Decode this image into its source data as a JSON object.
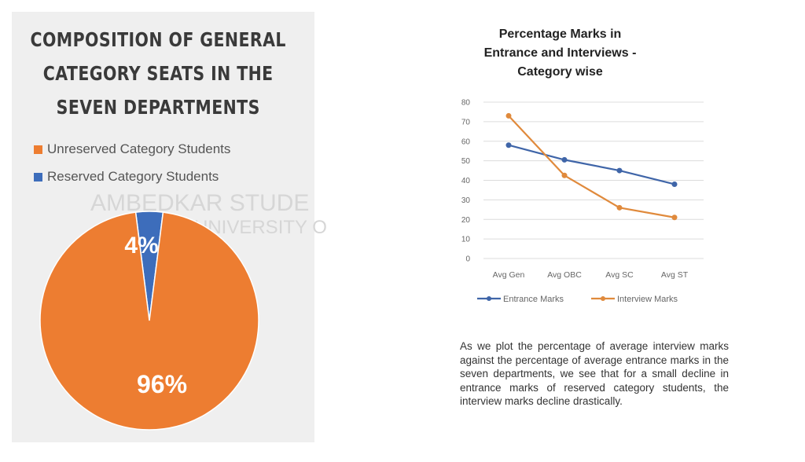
{
  "chart_data": [
    {
      "type": "pie",
      "title": "COMPOSITION OF GENERAL CATEGORY SEATS  IN THE SEVEN DEPARTMENTS",
      "legend": "top",
      "slices": [
        {
          "name": "Unreserved Category Students",
          "value": 96,
          "label": "96%",
          "color": "#ed7d31"
        },
        {
          "name": "Reserved Category Students",
          "value": 4,
          "label": "4%",
          "color": "#3d6dbb"
        }
      ]
    },
    {
      "type": "line",
      "title": "Percentage Marks in Entrance and Interviews - Category wise",
      "categories": [
        "Avg Gen",
        "Avg OBC",
        "Avg SC",
        "Avg ST"
      ],
      "ylim": [
        0,
        80
      ],
      "yticks": [
        "0",
        "10",
        "20",
        "30",
        "40",
        "50",
        "60",
        "70",
        "80"
      ],
      "grid": true,
      "legend": "bottom",
      "series": [
        {
          "name": "Entrance Marks",
          "values": [
            58,
            50.5,
            45,
            38
          ],
          "color": "#3f65a8"
        },
        {
          "name": "Interview Marks",
          "values": [
            73,
            42.5,
            26,
            21
          ],
          "color": "#e08a3c"
        }
      ]
    }
  ],
  "watermark": {
    "line1": "AMBEDKAR STUDE",
    "line2": "UNIVERSITY O"
  },
  "paragraph": "As we plot the percentage of average interview marks against the percentage of average entrance marks in the seven departments, we see that for a small decline in entrance marks of reserved category students, the interview marks decline drastically."
}
